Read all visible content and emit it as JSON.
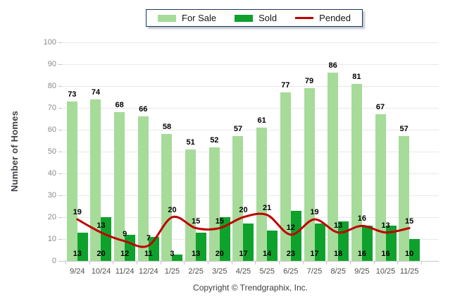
{
  "chart_data": {
    "type": "bar",
    "categories": [
      "9/24",
      "10/24",
      "11/24",
      "12/24",
      "1/25",
      "2/25",
      "3/25",
      "4/25",
      "5/25",
      "6/25",
      "7/25",
      "8/25",
      "9/25",
      "10/25",
      "11/25"
    ],
    "series": [
      {
        "name": "For Sale",
        "type": "bar",
        "color": "#A6DB9A",
        "values": [
          73,
          74,
          68,
          66,
          58,
          51,
          52,
          57,
          61,
          77,
          79,
          86,
          81,
          67,
          57
        ]
      },
      {
        "name": "Sold",
        "type": "bar",
        "color": "#0EA22C",
        "values": [
          13,
          20,
          12,
          11,
          3,
          13,
          20,
          17,
          14,
          23,
          17,
          18,
          16,
          16,
          10
        ]
      },
      {
        "name": "Pended",
        "type": "line",
        "color": "#C00000",
        "values": [
          19,
          13,
          9,
          7,
          20,
          15,
          15,
          20,
          21,
          12,
          19,
          13,
          16,
          13,
          15
        ]
      }
    ],
    "title": "",
    "xlabel": "",
    "ylabel": "Number of Homes",
    "ylim": [
      0,
      100
    ],
    "ytick_step": 10,
    "grid": true,
    "legend_position": "top",
    "data_labels": true
  },
  "footer": {
    "copyright": "Copyright © Trendgraphix, Inc."
  },
  "colors": {
    "grid": "#E8E8E8",
    "axis": "#C6C6C6",
    "y_tick_label": "#8A8A86",
    "x_tick_label": "#4F4F46",
    "data_label": "#000000",
    "legend_border": "#17375E"
  }
}
